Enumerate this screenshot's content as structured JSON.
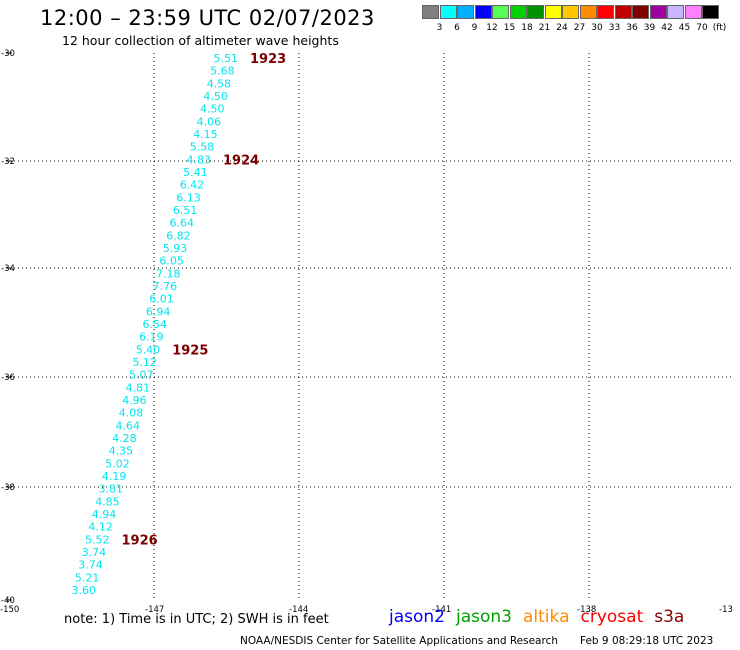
{
  "header": {
    "title": "12:00 – 23:59 UTC 02/07/2023",
    "subtitle": "12 hour collection of altimeter wave heights"
  },
  "legend": {
    "colors": [
      "#808080",
      "#00ffff",
      "#00b0ff",
      "#0000ff",
      "#55ff55",
      "#00d000",
      "#009000",
      "#ffff00",
      "#ffc800",
      "#ff8c00",
      "#ff0000",
      "#c00000",
      "#800000",
      "#a000a0",
      "#c8b4ff",
      "#ff80ff",
      "#000000"
    ],
    "labels": [
      "3",
      "6",
      "9",
      "12",
      "15",
      "18",
      "21",
      "24",
      "27",
      "30",
      "33",
      "36",
      "39",
      "42",
      "45",
      "70",
      "(ft)"
    ]
  },
  "map": {
    "lon_labels": [
      "-150",
      "-147",
      "-144",
      "-141",
      "-138",
      "-13"
    ],
    "lat_labels": [
      "-30",
      "-32",
      "-34",
      "-36",
      "-38",
      "-40"
    ],
    "wave_color": "#00e5ee",
    "pass_color": "#7a0000"
  },
  "wave_heights": [
    "5.51",
    "5.68",
    "4.58",
    "4.50",
    "4.50",
    "4.06",
    "4.15",
    "5.58",
    "4.83",
    "5.41",
    "6.42",
    "6.13",
    "6.51",
    "6.64",
    "6.82",
    "5.93",
    "6.05",
    "7.18",
    "7.76",
    "6.01",
    "6.94",
    "6.54",
    "6.19",
    "5.40",
    "5.12",
    "5.07",
    "4.81",
    "4.96",
    "4.08",
    "4.64",
    "4.28",
    "4.35",
    "5.02",
    "4.19",
    "3.81",
    "4.85",
    "4.94",
    "4.12",
    "5.52",
    "3.74",
    "3.74",
    "5.21",
    "3.60"
  ],
  "time_markers": [
    {
      "label": "1923",
      "index": 0
    },
    {
      "label": "1924",
      "index": 8
    },
    {
      "label": "1925",
      "index": 23
    },
    {
      "label": "1926",
      "index": 38
    }
  ],
  "footer": {
    "note": "note:  1) Time is in UTC;  2) SWH is in feet",
    "satellites": [
      {
        "name": "jason2",
        "color": "#0000ff"
      },
      {
        "name": "jason3",
        "color": "#00a000"
      },
      {
        "name": "altika",
        "color": "#ff8c00"
      },
      {
        "name": "cryosat",
        "color": "#ff0000"
      },
      {
        "name": "s3a",
        "color": "#8b0000"
      }
    ],
    "credit": "NOAA/NESDIS Center for Satellite Applications and Research",
    "timestamp": "Feb  9 08:29:18 UTC 2023"
  }
}
